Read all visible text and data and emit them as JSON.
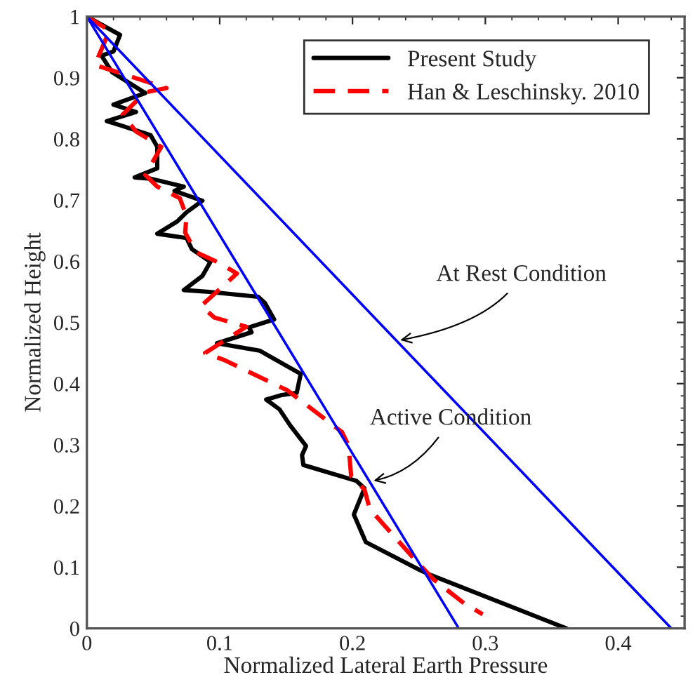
{
  "chart_data": {
    "type": "line",
    "xlabel": "Normalized Lateral Earth Pressure",
    "ylabel": "Normalized Height",
    "xlim": [
      0,
      0.45
    ],
    "ylim": [
      0,
      1
    ],
    "xticks": [
      0,
      0.1,
      0.2,
      0.3,
      0.4
    ],
    "yticks": [
      0,
      0.1,
      0.2,
      0.3,
      0.4,
      0.5,
      0.6,
      0.7,
      0.8,
      0.9,
      1
    ],
    "grid": false,
    "legend": "top right",
    "marker": "none",
    "series": [
      {
        "name": "Present Study",
        "color": "#000000",
        "line_style": "solid",
        "x": [
          0,
          0.025,
          0.02,
          0.011,
          0.019,
          0.044,
          0.02,
          0.037,
          0.015,
          0.027,
          0.048,
          0.053,
          0.053,
          0.036,
          0.048,
          0.073,
          0.066,
          0.087,
          0.075,
          0.068,
          0.053,
          0.075,
          0.079,
          0.093,
          0.087,
          0.073,
          0.092,
          0.129,
          0.134,
          0.141,
          0.122,
          0.124,
          0.098,
          0.13,
          0.161,
          0.158,
          0.146,
          0.135,
          0.145,
          0.153,
          0.165,
          0.162,
          0.163,
          0.203,
          0.209,
          0.201,
          0.21,
          0.251,
          0.259,
          0.361
        ],
        "values": [
          1,
          0.97,
          0.943,
          0.936,
          0.909,
          0.875,
          0.856,
          0.844,
          0.829,
          0.821,
          0.806,
          0.787,
          0.752,
          0.737,
          0.735,
          0.722,
          0.715,
          0.699,
          0.68,
          0.665,
          0.645,
          0.638,
          0.62,
          0.599,
          0.576,
          0.553,
          0.55,
          0.542,
          0.532,
          0.505,
          0.492,
          0.484,
          0.466,
          0.454,
          0.416,
          0.385,
          0.381,
          0.374,
          0.358,
          0.332,
          0.298,
          0.283,
          0.267,
          0.241,
          0.229,
          0.186,
          0.141,
          0.095,
          0.087,
          0
        ]
      },
      {
        "name": "Han & Leschinsky. 2010",
        "color": "#ff0000",
        "line_style": "dashed",
        "x": [
          0,
          0.017,
          0.006,
          0.06,
          0.044,
          0.027,
          0.037,
          0.056,
          0.044,
          0.053,
          0.07,
          0.075,
          0.074,
          0.082,
          0.098,
          0.113,
          0.086,
          0.096,
          0.12,
          0.089,
          0.103,
          0.151,
          0.192,
          0.197,
          0.199,
          0.209,
          0.213,
          0.248,
          0.261,
          0.284,
          0.298
        ],
        "values": [
          1,
          0.977,
          0.921,
          0.883,
          0.876,
          0.84,
          0.812,
          0.787,
          0.741,
          0.722,
          0.703,
          0.674,
          0.647,
          0.615,
          0.599,
          0.58,
          0.527,
          0.508,
          0.493,
          0.45,
          0.439,
          0.389,
          0.321,
          0.299,
          0.248,
          0.227,
          0.195,
          0.11,
          0.08,
          0.041,
          0.023
        ]
      },
      {
        "color": "#0000ff",
        "line_style": "solid",
        "x": [
          0,
          0.44
        ],
        "values": [
          1,
          0
        ]
      },
      {
        "color": "#0000ff",
        "line_style": "solid",
        "x": [
          0,
          0.28
        ],
        "values": [
          1,
          0
        ]
      }
    ],
    "annotations": [
      {
        "text": "At Rest Condition",
        "x": 0.233,
        "y": 0.47
      },
      {
        "text": "Active Condition",
        "x": 0.213,
        "y": 0.24
      }
    ]
  }
}
